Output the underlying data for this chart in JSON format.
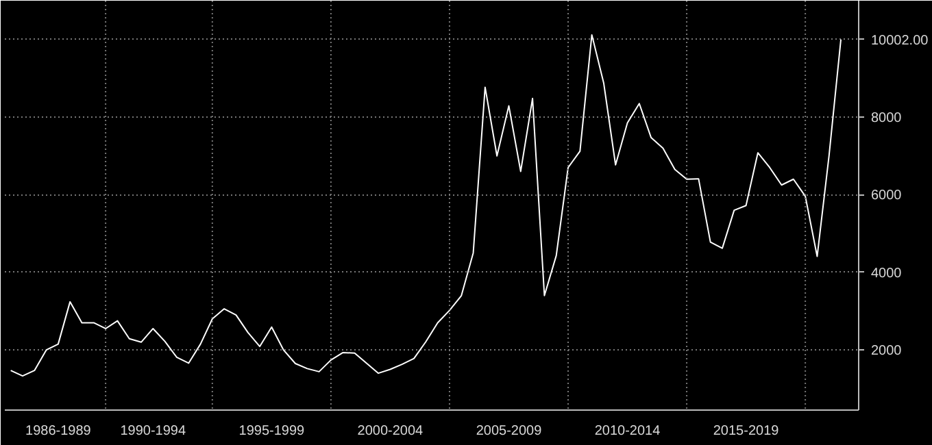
{
  "chart_data": {
    "type": "line",
    "categories": [
      null,
      null,
      null,
      null,
      "1986-1989",
      null,
      null,
      null,
      null,
      null,
      null,
      null,
      "1990-1994",
      null,
      null,
      null,
      null,
      null,
      null,
      null,
      null,
      null,
      "1995-1999",
      null,
      null,
      null,
      null,
      null,
      null,
      null,
      null,
      null,
      "2000-2004",
      null,
      null,
      null,
      null,
      null,
      null,
      null,
      null,
      null,
      "2005-2009",
      null,
      null,
      null,
      null,
      null,
      null,
      null,
      null,
      null,
      "2010-2014",
      null,
      null,
      null,
      null,
      null,
      null,
      null,
      null,
      null,
      "2015-2019",
      null,
      null,
      null,
      null,
      null,
      null,
      null,
      null
    ],
    "series": [
      {
        "color": "#ffffff",
        "values": [
          1470,
          1330,
          1470,
          2000,
          2150,
          3240,
          2700,
          2700,
          2550,
          2750,
          2290,
          2200,
          2550,
          2220,
          1810,
          1660,
          2150,
          2800,
          3060,
          2900,
          2450,
          2090,
          2590,
          2000,
          1650,
          1520,
          1440,
          1740,
          1930,
          1920,
          1660,
          1400,
          1500,
          1630,
          1780,
          2210,
          2700,
          3020,
          3400,
          4500,
          8770,
          7000,
          8290,
          6600,
          8480,
          3400,
          4430,
          6700,
          7120,
          10120,
          8880,
          6770,
          7850,
          8350,
          7470,
          7200,
          6650,
          6400,
          6410,
          4780,
          4620,
          5600,
          5720,
          7080,
          6700,
          6250,
          6400,
          5960,
          4410,
          7000,
          10002
        ]
      }
    ],
    "ylim": [
      450,
      11000
    ],
    "yticks": [
      2000,
      4000,
      6000,
      8000,
      {
        "value": 10002,
        "label": "10002.00"
      }
    ],
    "grid": true
  }
}
